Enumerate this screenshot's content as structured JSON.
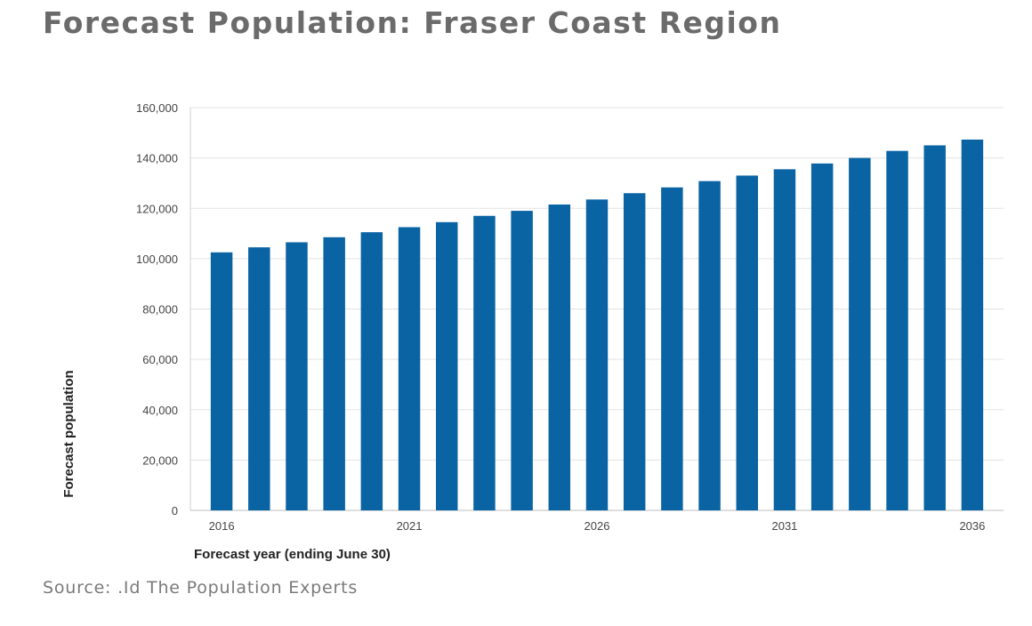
{
  "title": "Forecast Population: Fraser Coast Region",
  "source": "Source: .Id The Population Experts",
  "colors": {
    "bar": "#0a64a4",
    "title": "#6b6b6b",
    "grid": "#e3e3e3"
  },
  "chart_data": {
    "type": "bar",
    "xlabel": "Forecast year (ending June 30)",
    "ylabel": "Forecast population",
    "categories": [
      "2016",
      "2017",
      "2018",
      "2019",
      "2020",
      "2021",
      "2022",
      "2023",
      "2024",
      "2025",
      "2026",
      "2027",
      "2028",
      "2029",
      "2030",
      "2031",
      "2032",
      "2033",
      "2034",
      "2035",
      "2036"
    ],
    "x_tick_labels": [
      "2016",
      "2021",
      "2026",
      "2031",
      "2036"
    ],
    "values": [
      102500,
      104500,
      106500,
      108500,
      110500,
      112500,
      114500,
      117000,
      119000,
      121500,
      123500,
      126000,
      128300,
      130800,
      133000,
      135500,
      137800,
      140000,
      142800,
      145000,
      147300
    ],
    "ylim": [
      0,
      160000
    ],
    "y_ticks": [
      0,
      20000,
      40000,
      60000,
      80000,
      100000,
      120000,
      140000,
      160000
    ],
    "y_tick_labels": [
      "0",
      "20,000",
      "40,000",
      "60,000",
      "80,000",
      "100,000",
      "120,000",
      "140,000",
      "160,000"
    ],
    "grid": true
  }
}
